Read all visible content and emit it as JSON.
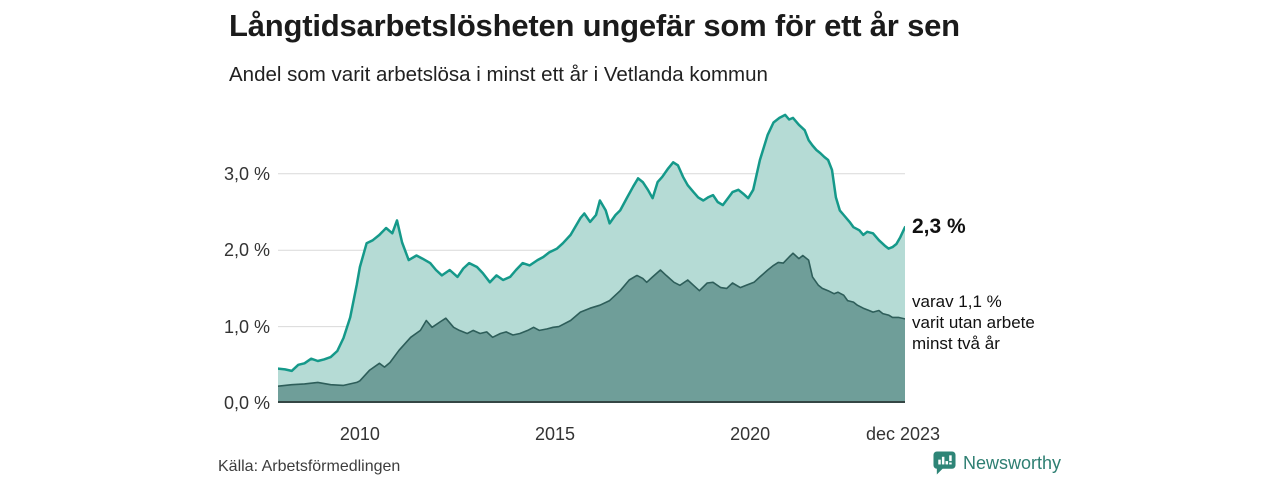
{
  "header": {
    "title": "Långtidsarbetslösheten ungefär som för ett år sen",
    "subtitle": "Andel som varit arbetslösa i minst ett år i Vetlanda kommun"
  },
  "annotations": {
    "latest_label": "2,3 %",
    "secondary": {
      "line1": "varav 1,1 %",
      "line2": "varit utan arbete",
      "line3": "minst två år"
    }
  },
  "footer": {
    "source": "Källa: Arbetsförmedlingen",
    "brand": "Newsworthy",
    "brand_icon": "bar-chart-speech-bubble-icon"
  },
  "colors": {
    "accent_line": "#15998a",
    "accent_fill": "#b5dbd5",
    "dark_line": "#2e5e5a",
    "dark_fill": "#6f9e99",
    "gridline": "#d9d9d9",
    "baseline": "#2c3a39",
    "brand_teal": "#2e7f72",
    "title_text": "#1b1b1b",
    "axis_text": "#333333"
  },
  "chart_data": {
    "type": "area",
    "title": "Långtidsarbetslösheten ungefär som för ett år sen",
    "subtitle": "Andel som varit arbetslösa i minst ett år i Vetlanda kommun",
    "unit": "%",
    "x_range": [
      2007.9,
      2023.97
    ],
    "y_axis_max_plot": 3.834,
    "grid": true,
    "legend_position": "annotations-right",
    "y_ticks": [
      {
        "label": "3,0 %",
        "value": 3.0,
        "gridline": true
      },
      {
        "label": "2,0 %",
        "value": 2.0,
        "gridline": true
      },
      {
        "label": "1,0 %",
        "value": 1.0,
        "gridline": true
      },
      {
        "label": "0,0 %",
        "value": 0.0,
        "gridline": false
      }
    ],
    "x_ticks": [
      {
        "label": "2010",
        "x": 2010.0
      },
      {
        "label": "2015",
        "x": 2015.0
      },
      {
        "label": "2020",
        "x": 2020.0
      },
      {
        "label": "dec 2023",
        "x": 2023.92
      }
    ],
    "series": [
      {
        "name": "Andel arbetslösa minst ett år",
        "latest_value": 2.3,
        "latest_period": "dec 2023",
        "line_color": "#15998a",
        "fill_color": "#b5dbd5",
        "line_width": 2.5,
        "points": [
          [
            2007.92,
            0.45
          ],
          [
            2008.08,
            0.44
          ],
          [
            2008.25,
            0.42
          ],
          [
            2008.42,
            0.5
          ],
          [
            2008.58,
            0.52
          ],
          [
            2008.75,
            0.58
          ],
          [
            2008.92,
            0.55
          ],
          [
            2009.08,
            0.57
          ],
          [
            2009.25,
            0.6
          ],
          [
            2009.42,
            0.68
          ],
          [
            2009.58,
            0.85
          ],
          [
            2009.75,
            1.12
          ],
          [
            2009.92,
            1.55
          ],
          [
            2010.0,
            1.78
          ],
          [
            2010.17,
            2.09
          ],
          [
            2010.33,
            2.13
          ],
          [
            2010.5,
            2.2
          ],
          [
            2010.67,
            2.29
          ],
          [
            2010.83,
            2.22
          ],
          [
            2010.95,
            2.39
          ],
          [
            2011.08,
            2.1
          ],
          [
            2011.25,
            1.87
          ],
          [
            2011.45,
            1.93
          ],
          [
            2011.6,
            1.89
          ],
          [
            2011.8,
            1.83
          ],
          [
            2011.95,
            1.74
          ],
          [
            2012.1,
            1.67
          ],
          [
            2012.3,
            1.74
          ],
          [
            2012.5,
            1.65
          ],
          [
            2012.65,
            1.76
          ],
          [
            2012.8,
            1.83
          ],
          [
            2013.0,
            1.78
          ],
          [
            2013.15,
            1.7
          ],
          [
            2013.33,
            1.58
          ],
          [
            2013.5,
            1.67
          ],
          [
            2013.67,
            1.61
          ],
          [
            2013.85,
            1.65
          ],
          [
            2014.0,
            1.74
          ],
          [
            2014.17,
            1.83
          ],
          [
            2014.35,
            1.8
          ],
          [
            2014.55,
            1.87
          ],
          [
            2014.7,
            1.91
          ],
          [
            2014.85,
            1.97
          ],
          [
            2015.05,
            2.02
          ],
          [
            2015.2,
            2.09
          ],
          [
            2015.4,
            2.2
          ],
          [
            2015.65,
            2.42
          ],
          [
            2015.75,
            2.48
          ],
          [
            2015.9,
            2.37
          ],
          [
            2016.05,
            2.46
          ],
          [
            2016.15,
            2.65
          ],
          [
            2016.3,
            2.52
          ],
          [
            2016.4,
            2.35
          ],
          [
            2016.55,
            2.46
          ],
          [
            2016.67,
            2.52
          ],
          [
            2016.85,
            2.69
          ],
          [
            2017.0,
            2.83
          ],
          [
            2017.13,
            2.94
          ],
          [
            2017.25,
            2.89
          ],
          [
            2017.38,
            2.79
          ],
          [
            2017.5,
            2.68
          ],
          [
            2017.63,
            2.89
          ],
          [
            2017.75,
            2.96
          ],
          [
            2017.9,
            3.07
          ],
          [
            2018.03,
            3.15
          ],
          [
            2018.15,
            3.11
          ],
          [
            2018.28,
            2.96
          ],
          [
            2018.4,
            2.85
          ],
          [
            2018.55,
            2.76
          ],
          [
            2018.67,
            2.69
          ],
          [
            2018.8,
            2.65
          ],
          [
            2018.92,
            2.69
          ],
          [
            2019.05,
            2.72
          ],
          [
            2019.17,
            2.63
          ],
          [
            2019.3,
            2.59
          ],
          [
            2019.45,
            2.69
          ],
          [
            2019.55,
            2.76
          ],
          [
            2019.7,
            2.79
          ],
          [
            2019.82,
            2.74
          ],
          [
            2019.95,
            2.68
          ],
          [
            2020.08,
            2.79
          ],
          [
            2020.25,
            3.18
          ],
          [
            2020.45,
            3.51
          ],
          [
            2020.6,
            3.67
          ],
          [
            2020.75,
            3.73
          ],
          [
            2020.9,
            3.77
          ],
          [
            2021.0,
            3.71
          ],
          [
            2021.1,
            3.73
          ],
          [
            2021.25,
            3.64
          ],
          [
            2021.4,
            3.57
          ],
          [
            2021.5,
            3.44
          ],
          [
            2021.6,
            3.37
          ],
          [
            2021.7,
            3.31
          ],
          [
            2021.8,
            3.27
          ],
          [
            2021.9,
            3.22
          ],
          [
            2022.0,
            3.18
          ],
          [
            2022.1,
            3.05
          ],
          [
            2022.2,
            2.69
          ],
          [
            2022.3,
            2.52
          ],
          [
            2022.4,
            2.46
          ],
          [
            2022.55,
            2.37
          ],
          [
            2022.65,
            2.3
          ],
          [
            2022.8,
            2.26
          ],
          [
            2022.9,
            2.2
          ],
          [
            2023.0,
            2.24
          ],
          [
            2023.15,
            2.22
          ],
          [
            2023.3,
            2.13
          ],
          [
            2023.45,
            2.06
          ],
          [
            2023.55,
            2.02
          ],
          [
            2023.65,
            2.04
          ],
          [
            2023.75,
            2.08
          ],
          [
            2023.85,
            2.17
          ],
          [
            2023.92,
            2.3
          ]
        ]
      },
      {
        "name": "varav arbetslösa minst två år",
        "latest_value": 1.1,
        "latest_period": "dec 2023",
        "line_color": "#2e5e5a",
        "fill_color": "#6f9e99",
        "line_width": 1.6,
        "points": [
          [
            2007.92,
            0.22
          ],
          [
            2008.25,
            0.24
          ],
          [
            2008.58,
            0.25
          ],
          [
            2008.92,
            0.27
          ],
          [
            2009.25,
            0.24
          ],
          [
            2009.58,
            0.23
          ],
          [
            2009.92,
            0.27
          ],
          [
            2010.0,
            0.29
          ],
          [
            2010.25,
            0.43
          ],
          [
            2010.5,
            0.52
          ],
          [
            2010.63,
            0.47
          ],
          [
            2010.77,
            0.53
          ],
          [
            2011.0,
            0.69
          ],
          [
            2011.3,
            0.86
          ],
          [
            2011.55,
            0.95
          ],
          [
            2011.7,
            1.08
          ],
          [
            2011.85,
            0.99
          ],
          [
            2012.05,
            1.06
          ],
          [
            2012.2,
            1.11
          ],
          [
            2012.4,
            0.99
          ],
          [
            2012.55,
            0.95
          ],
          [
            2012.75,
            0.91
          ],
          [
            2012.9,
            0.95
          ],
          [
            2013.08,
            0.91
          ],
          [
            2013.25,
            0.93
          ],
          [
            2013.4,
            0.86
          ],
          [
            2013.6,
            0.91
          ],
          [
            2013.75,
            0.93
          ],
          [
            2013.92,
            0.89
          ],
          [
            2014.1,
            0.91
          ],
          [
            2014.3,
            0.95
          ],
          [
            2014.45,
            0.99
          ],
          [
            2014.6,
            0.95
          ],
          [
            2014.8,
            0.97
          ],
          [
            2014.95,
            0.99
          ],
          [
            2015.1,
            1.0
          ],
          [
            2015.4,
            1.08
          ],
          [
            2015.65,
            1.19
          ],
          [
            2015.9,
            1.24
          ],
          [
            2016.15,
            1.28
          ],
          [
            2016.4,
            1.34
          ],
          [
            2016.67,
            1.47
          ],
          [
            2016.9,
            1.61
          ],
          [
            2017.1,
            1.67
          ],
          [
            2017.25,
            1.63
          ],
          [
            2017.35,
            1.58
          ],
          [
            2017.5,
            1.65
          ],
          [
            2017.7,
            1.74
          ],
          [
            2017.85,
            1.67
          ],
          [
            2018.05,
            1.58
          ],
          [
            2018.2,
            1.54
          ],
          [
            2018.4,
            1.61
          ],
          [
            2018.55,
            1.54
          ],
          [
            2018.7,
            1.47
          ],
          [
            2018.9,
            1.57
          ],
          [
            2019.05,
            1.58
          ],
          [
            2019.25,
            1.51
          ],
          [
            2019.4,
            1.5
          ],
          [
            2019.55,
            1.57
          ],
          [
            2019.75,
            1.51
          ],
          [
            2019.9,
            1.54
          ],
          [
            2020.1,
            1.58
          ],
          [
            2020.25,
            1.65
          ],
          [
            2020.45,
            1.74
          ],
          [
            2020.6,
            1.8
          ],
          [
            2020.72,
            1.84
          ],
          [
            2020.85,
            1.83
          ],
          [
            2021.0,
            1.91
          ],
          [
            2021.1,
            1.96
          ],
          [
            2021.25,
            1.89
          ],
          [
            2021.35,
            1.93
          ],
          [
            2021.5,
            1.87
          ],
          [
            2021.6,
            1.65
          ],
          [
            2021.75,
            1.54
          ],
          [
            2021.85,
            1.5
          ],
          [
            2022.0,
            1.47
          ],
          [
            2022.15,
            1.43
          ],
          [
            2022.25,
            1.45
          ],
          [
            2022.4,
            1.41
          ],
          [
            2022.5,
            1.34
          ],
          [
            2022.65,
            1.32
          ],
          [
            2022.75,
            1.28
          ],
          [
            2022.9,
            1.24
          ],
          [
            2023.05,
            1.21
          ],
          [
            2023.15,
            1.19
          ],
          [
            2023.3,
            1.21
          ],
          [
            2023.4,
            1.17
          ],
          [
            2023.55,
            1.15
          ],
          [
            2023.65,
            1.12
          ],
          [
            2023.8,
            1.12
          ],
          [
            2023.92,
            1.1
          ]
        ]
      }
    ]
  }
}
